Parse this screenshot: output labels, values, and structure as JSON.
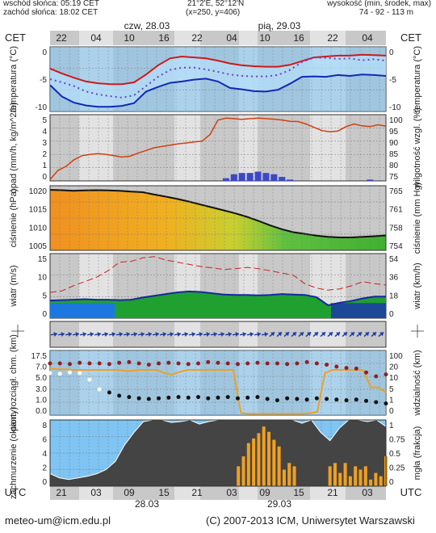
{
  "header": {
    "sunrise": "wschód słońca: 05:19 CET",
    "sunset": "zachód słońca: 18:02 CET",
    "coords": "21°2'E, 52°12'N",
    "grid": "(x=250,  y=406)",
    "height_label": "wysokość (min, środek, max)",
    "height_values": "74 - 92 - 113 m"
  },
  "axis_top": {
    "tz": "CET",
    "day1": "czw, 28.03",
    "day2": "pią, 29.03",
    "hours": [
      "22",
      "04",
      "10",
      "16",
      "22",
      "04",
      "10",
      "16",
      "22",
      "04"
    ]
  },
  "axis_bottom": {
    "tz": "UTC",
    "hours": [
      "21",
      "03",
      "09",
      "15",
      "21",
      "03",
      "09",
      "15",
      "21",
      "03"
    ],
    "date1": "28.03",
    "date2": "29.03"
  },
  "footer": {
    "email": "meteo-um@icm.edu.pl",
    "copyright": "(C) 2007-2013 ICM, Uniwersytet Warszawski"
  },
  "colors": {
    "night": "#c8c8c8",
    "day": "#e2e2e2",
    "sky": "#7fc4f2",
    "temp": "#d01818",
    "dew": "#1428b4",
    "rain": "#d04010",
    "pressure_line": "#111111",
    "wind_gust": "#c82020",
    "cloud_dark": "#444444",
    "fog": "#f0a020"
  },
  "chart_data": [
    {
      "type": "line",
      "panel": "temperature",
      "ylabel_left": "temperatura (°C)",
      "ylabel_right": "temperatura (°C)",
      "ticks": [
        "0",
        "-5",
        "-10"
      ],
      "ticks_right": [
        "0",
        "-5",
        "-10"
      ],
      "ylim": [
        -12.5,
        1.5
      ],
      "series": [
        {
          "role": "temperature",
          "values": [
            -3.2,
            -4.3,
            -5.2,
            -6.0,
            -6.4,
            -6.6,
            -6.6,
            -6.2,
            -4.5,
            -2.5,
            -1.0,
            -0.6,
            -0.8,
            -1.0,
            -1.5,
            -2.1,
            -2.5,
            -2.7,
            -2.8,
            -2.8,
            -2.4,
            -1.6,
            -0.8,
            -0.6,
            -0.4,
            -0.4,
            -0.2,
            -0.3,
            -0.4
          ]
        },
        {
          "role": "perceived",
          "values": [
            -5.5,
            -6.2,
            -7.0,
            -8.2,
            -8.8,
            -9.2,
            -9.5,
            -9.0,
            -7.0,
            -5.0,
            -3.5,
            -3.0,
            -3.0,
            -3.4,
            -3.9,
            -4.5,
            -4.8,
            -4.9,
            -4.9,
            -4.6,
            -3.5,
            -1.8,
            -0.8,
            -0.9,
            -1.1,
            -1.0,
            -1.4,
            -1.2,
            -1.5
          ]
        },
        {
          "role": "dew_point",
          "values": [
            -6.8,
            -9.3,
            -10.6,
            -11.2,
            -11.5,
            -11.5,
            -11.3,
            -10.7,
            -8.2,
            -7.2,
            -6.3,
            -6.0,
            -5.6,
            -5.4,
            -6.0,
            -7.4,
            -7.7,
            -8.1,
            -8.2,
            -7.8,
            -6.5,
            -5.0,
            -4.9,
            -5.0,
            -4.6,
            -4.8,
            -4.5,
            -4.6,
            -4.8
          ]
        }
      ]
    },
    {
      "type": "bar",
      "panel": "precipitation",
      "ylabel_left": "opad (mm/h, kg/m^2/h)",
      "ylabel_right": "wilgotność wzgl. (%)",
      "ticks": [
        "5",
        "4",
        "3",
        "2",
        "1",
        "0"
      ],
      "ticks_right": [
        "100",
        "95",
        "90",
        "85",
        "80",
        "75"
      ],
      "ylim": [
        0,
        5
      ],
      "ylim_right": [
        75,
        100
      ],
      "humidity": [
        75.5,
        79,
        80.5,
        83,
        84.5,
        85,
        85.3,
        85,
        84.5,
        84,
        84.3,
        85.5,
        86.5,
        87.5,
        88,
        88.5,
        89,
        89.3,
        89.7,
        90,
        92.5,
        98,
        98.7,
        98.5,
        98.2,
        98.5,
        98.7,
        98.5,
        98.3,
        98,
        97.5,
        97.4,
        96.5,
        95.2,
        94,
        93.5,
        93.8,
        95.5,
        96.5,
        95.8,
        95.5,
        96.2,
        95.7
      ],
      "precip": [
        0,
        0,
        0,
        0,
        0,
        0,
        0,
        0,
        0,
        0,
        0,
        0,
        0,
        0,
        0,
        0,
        0,
        0,
        0,
        0,
        0,
        0,
        0.2,
        0.5,
        0.6,
        0.6,
        0.7,
        0.6,
        0.5,
        0.3,
        0.1,
        0,
        0,
        0,
        0,
        0,
        0,
        0,
        0,
        0,
        0.1,
        0,
        0
      ]
    },
    {
      "type": "area",
      "panel": "pressure",
      "ylabel_left": "ciśnienie (hPa)",
      "ylabel_right": "ciśnienie (mm Hg)",
      "ticks": [
        "1020",
        "1015",
        "1010",
        "1005"
      ],
      "ticks_right": [
        "765",
        "761",
        "758",
        "754"
      ],
      "ylim": [
        1000,
        1022
      ],
      "values": [
        1020.6,
        1020.5,
        1020.3,
        1020.4,
        1020.5,
        1020.4,
        1020.3,
        1020.0,
        1019.8,
        1019.0,
        1018.3,
        1017.5,
        1016.6,
        1015.6,
        1014.6,
        1013.6,
        1012.6,
        1011.4,
        1010.0,
        1008.5,
        1007.2,
        1006.2,
        1005.6,
        1005.0,
        1004.6,
        1004.4,
        1004.4,
        1004.6,
        1004.8,
        1005.1
      ]
    },
    {
      "type": "area",
      "panel": "wind",
      "ylabel_left": "wiatr (m/s)",
      "ylabel_right": "wiatr (km/h)",
      "ticks": [
        "15",
        "10",
        "5",
        "0"
      ],
      "ticks_right": [
        "54",
        "36",
        "18",
        "0"
      ],
      "ylim": [
        0,
        15
      ],
      "speed": [
        4.1,
        4.2,
        4.3,
        4.4,
        4.3,
        4.3,
        4.2,
        4.3,
        4.8,
        5.2,
        5.6,
        6.0,
        6.2,
        6.1,
        5.8,
        5.5,
        5.4,
        5.4,
        5.3,
        5.4,
        5.6,
        5.5,
        5.4,
        4.9,
        3.0,
        3.6,
        4.0,
        4.6,
        5.0,
        5.0
      ],
      "gust": [
        6.0,
        6.3,
        7.5,
        8.5,
        9.5,
        11.0,
        13.0,
        13.2,
        14.0,
        14.3,
        13.5,
        13.0,
        12.5,
        12.0,
        11.7,
        11.3,
        11.5,
        11.8,
        11.5,
        11.0,
        10.5,
        10.0,
        8.0,
        7.0,
        6.5,
        6.8,
        7.5,
        8.5,
        8.0,
        7.7
      ]
    },
    {
      "type": "scatter",
      "panel": "visibility",
      "ylabel_left": "pion. rozciągł. chm. (km)",
      "ylabel_right": "widzialność (km)",
      "ticks": [
        "17.5",
        "7.0",
        "5.0",
        "3.0",
        "1.0",
        "0.0"
      ],
      "ticks_right": [
        "100",
        "20",
        "10",
        "5",
        "1",
        "0"
      ],
      "ylim": [
        0,
        10
      ],
      "visibility": [
        7.2,
        7.1,
        7.1,
        7.0,
        7.0,
        7.0,
        7.0,
        7.0,
        7.0,
        7.0,
        6.8,
        6.9,
        7.0,
        7.0,
        7.0,
        6.5,
        6.3,
        6.7,
        7.0,
        7.0,
        7.0,
        7.0,
        7.0,
        7.0,
        7.0,
        0.3,
        0.2,
        0.2,
        0.2,
        0.2,
        0.2,
        0.2,
        0.2,
        0.2,
        0.3,
        0.5,
        6.5,
        7.0,
        7.0,
        7.0,
        7.0,
        7.0,
        4.3,
        4.3,
        3.5
      ],
      "cloud_top": [
        8.0,
        8.0,
        7.9,
        8.1,
        8.0,
        8.0,
        7.9,
        8.1,
        8.2,
        8.0,
        7.8,
        8.0,
        8.1,
        8.0,
        7.9,
        8.0,
        8.2,
        8.1,
        8.0,
        7.9,
        8.0,
        8.1,
        8.0,
        8.0,
        7.9,
        8.0,
        8.2,
        8.0,
        7.8,
        7.5,
        7.3,
        7.2,
        6.6,
        6.0,
        6.3
      ],
      "cloud_base": [
        6.5,
        6.4,
        6.6,
        6.5,
        5.5,
        4.0,
        3.5,
        3.0,
        2.8,
        2.6,
        2.5,
        2.6,
        2.7,
        2.8,
        2.7,
        2.8,
        2.6,
        2.7,
        2.8,
        2.6,
        2.7,
        2.8,
        2.5,
        2.3,
        2.6,
        2.5,
        2.4,
        2.6,
        2.5,
        2.4,
        2.3,
        2.4,
        2.2,
        2.0,
        1.8
      ]
    },
    {
      "type": "area",
      "panel": "clouds",
      "ylabel_left": "zachmurzenie (oktanty)",
      "ylabel_right": "mgła (frakcja)",
      "ticks": [
        "8",
        "6",
        "4",
        "2",
        "0"
      ],
      "ticks_right": [
        "1",
        "0.75",
        "0.5",
        "0.25",
        "0"
      ],
      "ylim": [
        0,
        8
      ],
      "total_cloud": [
        1.5,
        1.0,
        0.8,
        1.0,
        1.2,
        1.5,
        2.0,
        3.0,
        5.0,
        6.5,
        7.8,
        8.0,
        8.0,
        7.7,
        7.8,
        8.0,
        7.5,
        7.8,
        8.0,
        8.0,
        8.0,
        8.0,
        8.0,
        8.0,
        8.0,
        8.0,
        8.0,
        7.6,
        8.0,
        6.5,
        5.5,
        7.0,
        8.0,
        8.0,
        7.8,
        8.0,
        7.2
      ],
      "fog": [
        0,
        0,
        0,
        0,
        0,
        0,
        0,
        0,
        0,
        0,
        0,
        0,
        0,
        0,
        0,
        0,
        0,
        0,
        0,
        0,
        0,
        0,
        0,
        0,
        0,
        0,
        0,
        0,
        0,
        0,
        0,
        0,
        0,
        0,
        0,
        0,
        0,
        0.3,
        0.45,
        0.65,
        0.72,
        0.8,
        0.9,
        0.82,
        0.7,
        0.6,
        0.25,
        0.35,
        0.3,
        0,
        0,
        0,
        0,
        0,
        0,
        0.3,
        0.35,
        0.2,
        0.35,
        0.15,
        0.3,
        0.25,
        0.3,
        0.1,
        0.2,
        0.15,
        0.45
      ]
    }
  ]
}
